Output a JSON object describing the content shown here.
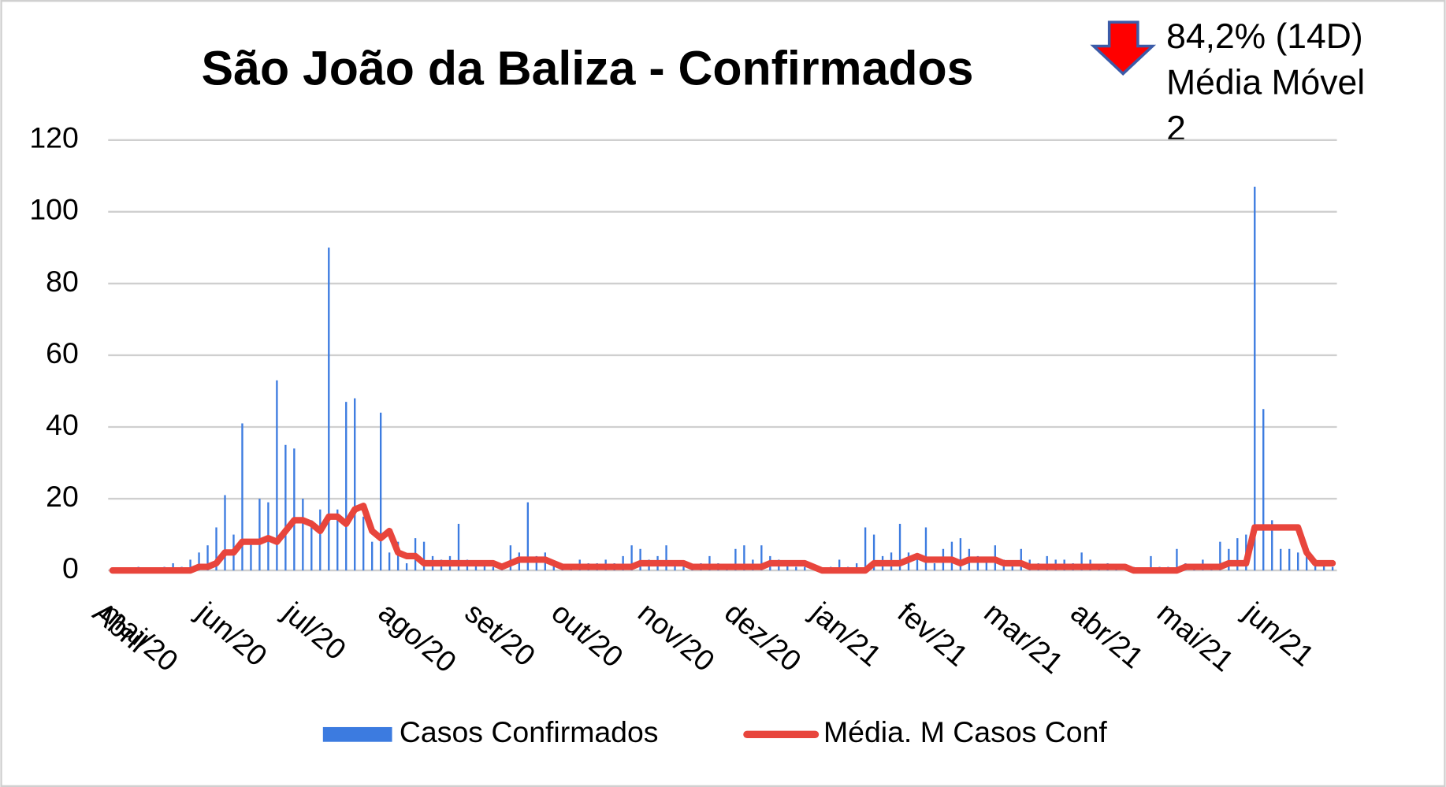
{
  "chart_data": {
    "type": "bar_line",
    "title": "São João da Baliza - Confirmados",
    "annotation": [
      "84,2% (14D)",
      "Média Móvel",
      "2"
    ],
    "categories": [
      "Abril",
      "mai/20",
      null,
      null,
      null,
      null,
      null,
      null,
      null,
      null,
      null,
      null,
      "jun/20",
      null,
      null,
      null,
      null,
      null,
      null,
      null,
      null,
      null,
      "jul/20",
      null,
      null,
      null,
      null,
      null,
      null,
      null,
      null,
      null,
      null,
      "ago/20",
      null,
      null,
      null,
      null,
      null,
      null,
      null,
      null,
      null,
      "set/20",
      null,
      null,
      null,
      null,
      null,
      null,
      null,
      null,
      null,
      "out/20",
      null,
      null,
      null,
      null,
      null,
      null,
      null,
      null,
      null,
      "nov/20",
      null,
      null,
      null,
      null,
      null,
      null,
      null,
      null,
      null,
      "dez/20",
      null,
      null,
      null,
      null,
      null,
      null,
      null,
      null,
      null,
      "jan/21",
      null,
      null,
      null,
      null,
      null,
      null,
      null,
      null,
      null,
      "fev/21",
      null,
      null,
      null,
      null,
      null,
      null,
      null,
      null,
      null,
      "mar/21",
      null,
      null,
      null,
      null,
      null,
      null,
      null,
      null,
      null,
      "abr/21",
      null,
      null,
      null,
      null,
      null,
      null,
      null,
      null,
      null,
      "mai/21",
      null,
      null,
      null,
      null,
      null,
      null,
      null,
      null,
      null,
      "jun/21",
      null,
      null,
      null,
      null,
      null,
      null,
      null,
      null
    ],
    "series": [
      {
        "name": "Casos Confirmados",
        "color": "#3c7be0",
        "kind": "bar",
        "values": [
          0,
          0,
          0,
          1,
          0,
          0,
          1,
          2,
          1,
          3,
          5,
          7,
          12,
          21,
          10,
          41,
          8,
          20,
          19,
          53,
          35,
          34,
          20,
          14,
          17,
          90,
          17,
          47,
          48,
          15,
          8,
          44,
          5,
          8,
          2,
          9,
          8,
          4,
          3,
          4,
          13,
          3,
          2,
          2,
          1,
          2,
          7,
          5,
          19,
          4,
          5,
          2,
          1,
          1,
          3,
          2,
          2,
          3,
          2,
          4,
          7,
          6,
          3,
          4,
          7,
          2,
          2,
          1,
          2,
          4,
          2,
          1,
          6,
          7,
          3,
          7,
          4,
          3,
          2,
          1,
          1,
          0,
          0,
          1,
          3,
          1,
          2,
          12,
          10,
          4,
          5,
          13,
          5,
          3,
          12,
          2,
          6,
          8,
          9,
          6,
          4,
          3,
          7,
          3,
          2,
          6,
          3,
          2,
          4,
          3,
          3,
          2,
          5,
          3,
          1,
          2,
          1,
          0,
          1,
          0,
          4,
          1,
          1,
          6,
          2,
          1,
          3,
          1,
          8,
          6,
          9,
          10,
          107,
          45,
          14,
          6,
          6,
          5,
          7,
          2,
          2,
          1
        ]
      },
      {
        "name": "Média. M Casos Conf",
        "color": "#e8453c",
        "kind": "line",
        "values": [
          0,
          0,
          0,
          0,
          0,
          0,
          0,
          0,
          0,
          0,
          1,
          1,
          2,
          5,
          5,
          8,
          8,
          8,
          9,
          8,
          11,
          14,
          14,
          13,
          11,
          15,
          15,
          13,
          17,
          18,
          11,
          9,
          11,
          5,
          4,
          4,
          2,
          2,
          2,
          2,
          2,
          2,
          2,
          2,
          2,
          1,
          2,
          3,
          3,
          3,
          3,
          2,
          1,
          1,
          1,
          1,
          1,
          1,
          1,
          1,
          1,
          2,
          2,
          2,
          2,
          2,
          2,
          1,
          1,
          1,
          1,
          1,
          1,
          1,
          1,
          1,
          2,
          2,
          2,
          2,
          2,
          1,
          0,
          0,
          0,
          0,
          0,
          0,
          2,
          2,
          2,
          2,
          3,
          4,
          3,
          3,
          3,
          3,
          2,
          3,
          3,
          3,
          3,
          2,
          2,
          2,
          1,
          1,
          1,
          1,
          1,
          1,
          1,
          1,
          1,
          1,
          1,
          1,
          0,
          0,
          0,
          0,
          0,
          0,
          1,
          1,
          1,
          1,
          1,
          2,
          2,
          2,
          12,
          12,
          12,
          12,
          12,
          12,
          5,
          2,
          2,
          2
        ]
      }
    ],
    "ylim": [
      0,
      120
    ],
    "yticks": [
      0,
      20,
      40,
      60,
      80,
      100,
      120
    ],
    "grid": true,
    "legend": "bottom"
  }
}
